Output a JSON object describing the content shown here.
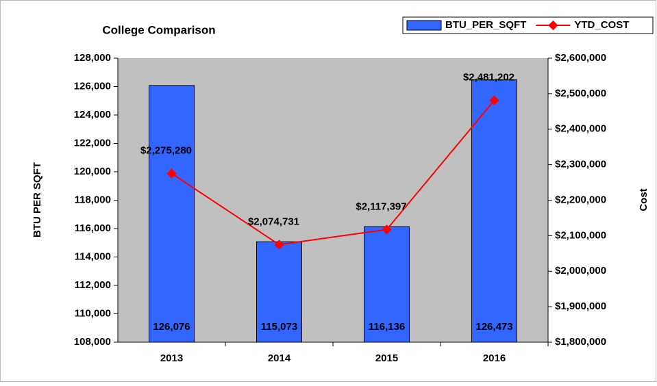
{
  "chart_data": {
    "type": "bar",
    "title": "College Comparison",
    "y_label": "BTU PER SQFT",
    "y2_label": "Cost",
    "categories": [
      "2013",
      "2014",
      "2015",
      "2016"
    ],
    "series": [
      {
        "name": "BTU_PER_SQFT",
        "type": "bar",
        "color": "#3366ff",
        "values": [
          126076,
          115073,
          116136,
          126473
        ],
        "value_labels": [
          "126,076",
          "115,073",
          "116,136",
          "126,473"
        ]
      },
      {
        "name": "YTD_COST",
        "type": "line",
        "axis": "y2",
        "color": "#ff0000",
        "values": [
          2275280,
          2074731,
          2117397,
          2481202
        ],
        "value_labels": [
          "$2,275,280",
          "$2,074,731",
          "$2,117,397",
          "$2,481,202"
        ]
      }
    ],
    "ylim": [
      108000,
      128000
    ],
    "yticks": [
      {
        "value": 108000,
        "label": "108,000"
      },
      {
        "value": 110000,
        "label": "110,000"
      },
      {
        "value": 112000,
        "label": "112,000"
      },
      {
        "value": 114000,
        "label": "114,000"
      },
      {
        "value": 116000,
        "label": "116,000"
      },
      {
        "value": 118000,
        "label": "118,000"
      },
      {
        "value": 120000,
        "label": "120,000"
      },
      {
        "value": 122000,
        "label": "122,000"
      },
      {
        "value": 124000,
        "label": "124,000"
      },
      {
        "value": 126000,
        "label": "126,000"
      },
      {
        "value": 128000,
        "label": "128,000"
      }
    ],
    "y2lim": [
      1800000,
      2600000
    ],
    "y2ticks": [
      {
        "value": 1800000,
        "label": "$1,800,000"
      },
      {
        "value": 1900000,
        "label": "$1,900,000"
      },
      {
        "value": 2000000,
        "label": "$2,000,000"
      },
      {
        "value": 2100000,
        "label": "$2,100,000"
      },
      {
        "value": 2200000,
        "label": "$2,200,000"
      },
      {
        "value": 2300000,
        "label": "$2,300,000"
      },
      {
        "value": 2400000,
        "label": "$2,400,000"
      },
      {
        "value": 2500000,
        "label": "$2,500,000"
      },
      {
        "value": 2600000,
        "label": "$2,600,000"
      }
    ],
    "legend": "top-right",
    "plot_background": "#c0c0c0"
  }
}
